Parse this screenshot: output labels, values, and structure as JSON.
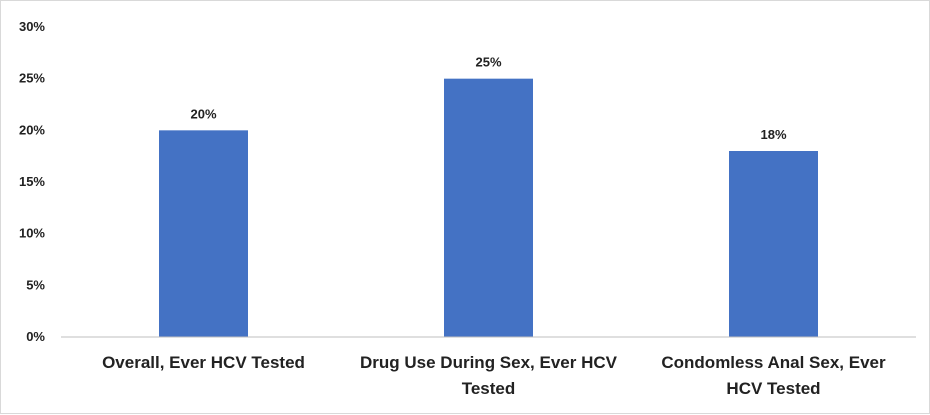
{
  "chart_data": {
    "type": "bar",
    "categories": [
      "Overall, Ever HCV Tested",
      "Drug Use During Sex, Ever HCV Tested",
      "Condomless Anal Sex, Ever HCV Tested"
    ],
    "category_label_lines": [
      [
        "Overall, Ever HCV Tested"
      ],
      [
        "Drug Use During Sex, Ever HCV",
        "Tested"
      ],
      [
        "Condomless Anal Sex, Ever",
        "HCV Tested"
      ]
    ],
    "values": [
      20,
      25,
      18
    ],
    "data_labels": [
      "20%",
      "25%",
      "18%"
    ],
    "ylim": [
      0,
      30
    ],
    "yticks": [
      0,
      5,
      10,
      15,
      20,
      25,
      30
    ],
    "ytick_labels": [
      "0%",
      "5%",
      "10%",
      "15%",
      "20%",
      "25%",
      "30%"
    ],
    "title": "",
    "xlabel": "",
    "ylabel": "",
    "grid": false,
    "legend": "none",
    "bar_color": "#4472C4",
    "axis_color": "#bfbfbf"
  }
}
